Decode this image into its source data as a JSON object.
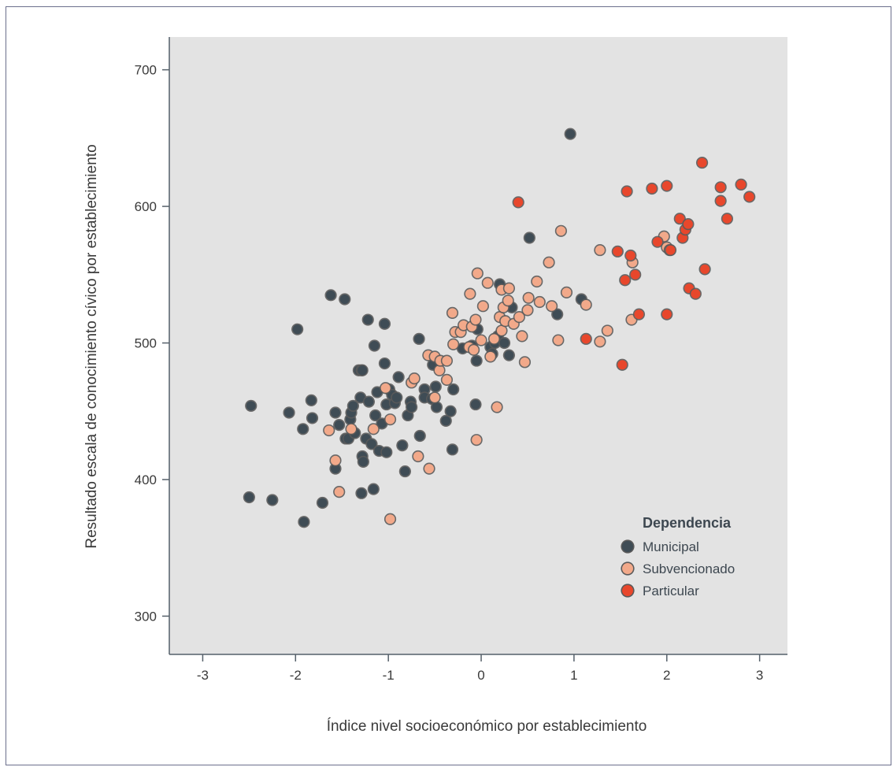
{
  "chart_data": {
    "type": "scatter",
    "title": "",
    "xlabel": "Índice nivel socioeconómico por establecimiento",
    "ylabel": "Resultado escala de conocimiento cívico por establecimiento",
    "xlim": [
      -3.36,
      3.3
    ],
    "ylim": [
      272,
      724
    ],
    "x_ticks": [
      -3,
      -2,
      -1,
      0,
      1,
      2,
      3
    ],
    "x_tick_labels": [
      "-3",
      "-2",
      "-1",
      "0",
      "1",
      "2",
      "3"
    ],
    "y_ticks": [
      300,
      400,
      500,
      600,
      700
    ],
    "y_tick_labels": [
      "300",
      "400",
      "500",
      "600",
      "700"
    ],
    "grid": false,
    "background": "#e3e3e3",
    "legend": {
      "title": "Dependencia",
      "position": "bottom-right"
    },
    "series": [
      {
        "name": "Municipal",
        "color": "#3f4c55",
        "points": [
          [
            -2.48,
            454
          ],
          [
            -2.5,
            387
          ],
          [
            -2.25,
            385
          ],
          [
            -2.07,
            449
          ],
          [
            -1.98,
            510
          ],
          [
            -1.92,
            437
          ],
          [
            -1.91,
            369
          ],
          [
            -1.83,
            458
          ],
          [
            -1.82,
            445
          ],
          [
            -1.71,
            383
          ],
          [
            -1.62,
            535
          ],
          [
            -1.57,
            449
          ],
          [
            -1.57,
            408
          ],
          [
            -1.53,
            440
          ],
          [
            -1.47,
            532
          ],
          [
            -1.46,
            430
          ],
          [
            -1.43,
            430
          ],
          [
            -1.41,
            444
          ],
          [
            -1.4,
            449
          ],
          [
            -1.38,
            454
          ],
          [
            -1.36,
            434
          ],
          [
            -1.32,
            480
          ],
          [
            -1.29,
            480
          ],
          [
            -1.28,
            480
          ],
          [
            -1.3,
            460
          ],
          [
            -1.28,
            417
          ],
          [
            -1.27,
            413
          ],
          [
            -1.29,
            390
          ],
          [
            -1.24,
            430
          ],
          [
            -1.22,
            517
          ],
          [
            -1.21,
            457
          ],
          [
            -1.18,
            426
          ],
          [
            -1.15,
            498
          ],
          [
            -1.14,
            447
          ],
          [
            -1.16,
            393
          ],
          [
            -1.12,
            464
          ],
          [
            -1.1,
            421
          ],
          [
            -1.07,
            441
          ],
          [
            -1.04,
            514
          ],
          [
            -1.04,
            485
          ],
          [
            -1.02,
            455
          ],
          [
            -1.02,
            420
          ],
          [
            -0.99,
            466
          ],
          [
            -0.96,
            462
          ],
          [
            -0.93,
            456
          ],
          [
            -0.91,
            460
          ],
          [
            -0.89,
            475
          ],
          [
            -0.85,
            425
          ],
          [
            -0.82,
            406
          ],
          [
            -0.79,
            447
          ],
          [
            -0.76,
            457
          ],
          [
            -0.75,
            453
          ],
          [
            -0.67,
            503
          ],
          [
            -0.66,
            432
          ],
          [
            -0.61,
            466
          ],
          [
            -0.61,
            460
          ],
          [
            -0.53,
            459
          ],
          [
            -0.52,
            484
          ],
          [
            -0.49,
            468
          ],
          [
            -0.48,
            453
          ],
          [
            -0.38,
            443
          ],
          [
            -0.33,
            450
          ],
          [
            -0.31,
            422
          ],
          [
            -0.3,
            466
          ],
          [
            -0.2,
            496
          ],
          [
            -0.1,
            498
          ],
          [
            -0.06,
            455
          ],
          [
            -0.05,
            487
          ],
          [
            -0.04,
            510
          ],
          [
            0.1,
            497
          ],
          [
            0.12,
            492
          ],
          [
            0.15,
            500
          ],
          [
            0.18,
            505
          ],
          [
            0.2,
            543
          ],
          [
            0.25,
            500
          ],
          [
            0.3,
            491
          ],
          [
            0.33,
            526
          ],
          [
            0.52,
            577
          ],
          [
            0.82,
            521
          ],
          [
            0.96,
            653
          ],
          [
            1.08,
            532
          ]
        ]
      },
      {
        "name": "Subvencionado",
        "color": "#f2a98a",
        "points": [
          [
            -1.64,
            436
          ],
          [
            -1.57,
            414
          ],
          [
            -1.53,
            391
          ],
          [
            -1.4,
            437
          ],
          [
            -1.16,
            437
          ],
          [
            -1.03,
            467
          ],
          [
            -0.98,
            371
          ],
          [
            -0.98,
            444
          ],
          [
            -0.75,
            471
          ],
          [
            -0.72,
            474
          ],
          [
            -0.68,
            417
          ],
          [
            -0.57,
            491
          ],
          [
            -0.56,
            408
          ],
          [
            -0.5,
            490
          ],
          [
            -0.5,
            460
          ],
          [
            -0.45,
            480
          ],
          [
            -0.44,
            487
          ],
          [
            -0.37,
            487
          ],
          [
            -0.37,
            473
          ],
          [
            -0.31,
            522
          ],
          [
            -0.3,
            499
          ],
          [
            -0.28,
            508
          ],
          [
            -0.22,
            508
          ],
          [
            -0.19,
            513
          ],
          [
            -0.12,
            536
          ],
          [
            -0.13,
            497
          ],
          [
            -0.1,
            512
          ],
          [
            -0.08,
            495
          ],
          [
            -0.06,
            517
          ],
          [
            -0.05,
            429
          ],
          [
            -0.04,
            551
          ],
          [
            0.0,
            502
          ],
          [
            0.02,
            527
          ],
          [
            0.07,
            544
          ],
          [
            0.1,
            490
          ],
          [
            0.14,
            503
          ],
          [
            0.17,
            453
          ],
          [
            0.2,
            519
          ],
          [
            0.22,
            539
          ],
          [
            0.22,
            509
          ],
          [
            0.24,
            526
          ],
          [
            0.26,
            516
          ],
          [
            0.29,
            531
          ],
          [
            0.3,
            540
          ],
          [
            0.35,
            514
          ],
          [
            0.41,
            519
          ],
          [
            0.44,
            505
          ],
          [
            0.47,
            486
          ],
          [
            0.5,
            524
          ],
          [
            0.51,
            533
          ],
          [
            0.6,
            545
          ],
          [
            0.63,
            530
          ],
          [
            0.73,
            559
          ],
          [
            0.76,
            527
          ],
          [
            0.83,
            502
          ],
          [
            0.86,
            582
          ],
          [
            0.92,
            537
          ],
          [
            1.13,
            528
          ],
          [
            1.28,
            501
          ],
          [
            1.28,
            568
          ],
          [
            1.36,
            509
          ],
          [
            1.62,
            517
          ],
          [
            1.63,
            559
          ],
          [
            1.97,
            578
          ],
          [
            2.0,
            570
          ],
          [
            2.03,
            568
          ]
        ]
      },
      {
        "name": "Particular",
        "color": "#e8472c",
        "points": [
          [
            0.4,
            603
          ],
          [
            1.13,
            503
          ],
          [
            1.47,
            567
          ],
          [
            1.52,
            484
          ],
          [
            1.55,
            546
          ],
          [
            1.57,
            611
          ],
          [
            1.61,
            564
          ],
          [
            1.66,
            550
          ],
          [
            1.7,
            521
          ],
          [
            1.84,
            613
          ],
          [
            1.9,
            574
          ],
          [
            2.0,
            521
          ],
          [
            2.0,
            615
          ],
          [
            2.04,
            568
          ],
          [
            2.14,
            591
          ],
          [
            2.17,
            577
          ],
          [
            2.2,
            583
          ],
          [
            2.23,
            587
          ],
          [
            2.24,
            540
          ],
          [
            2.31,
            536
          ],
          [
            2.38,
            632
          ],
          [
            2.41,
            554
          ],
          [
            2.58,
            614
          ],
          [
            2.58,
            604
          ],
          [
            2.65,
            591
          ],
          [
            2.8,
            616
          ],
          [
            2.89,
            607
          ]
        ]
      }
    ]
  }
}
